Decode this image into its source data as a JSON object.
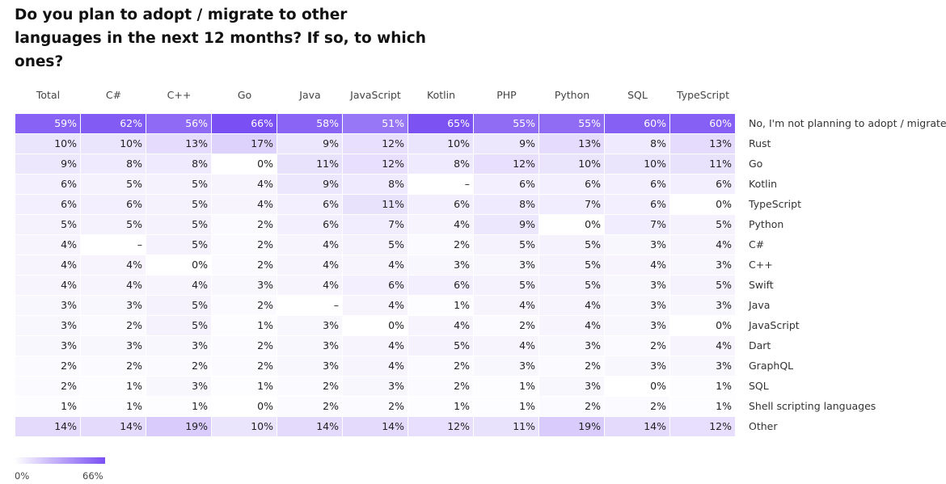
{
  "title": "Do you plan to adopt / migrate to other languages in the next 12 months? If so, to which ones?",
  "chart_data": {
    "type": "heatmap",
    "title": "Do you plan to adopt / migrate to other languages in the next 12 months? If so, to which ones?",
    "columns": [
      "Total",
      "C#",
      "C++",
      "Go",
      "Java",
      "JavaScript",
      "Kotlin",
      "PHP",
      "Python",
      "SQL",
      "TypeScript"
    ],
    "rows": [
      {
        "label": "No, I'm not planning to adopt / migrate",
        "values": [
          "59%",
          "62%",
          "56%",
          "66%",
          "58%",
          "51%",
          "65%",
          "55%",
          "55%",
          "60%",
          "60%"
        ]
      },
      {
        "label": "Rust",
        "values": [
          "10%",
          "10%",
          "13%",
          "17%",
          "9%",
          "12%",
          "10%",
          "9%",
          "13%",
          "8%",
          "13%"
        ]
      },
      {
        "label": "Go",
        "values": [
          "9%",
          "8%",
          "8%",
          "0%",
          "11%",
          "12%",
          "8%",
          "12%",
          "10%",
          "10%",
          "11%"
        ]
      },
      {
        "label": "Kotlin",
        "values": [
          "6%",
          "5%",
          "5%",
          "4%",
          "9%",
          "8%",
          "–",
          "6%",
          "6%",
          "6%",
          "6%"
        ]
      },
      {
        "label": "TypeScript",
        "values": [
          "6%",
          "6%",
          "5%",
          "4%",
          "6%",
          "11%",
          "6%",
          "8%",
          "7%",
          "6%",
          "0%"
        ]
      },
      {
        "label": "Python",
        "values": [
          "5%",
          "5%",
          "5%",
          "2%",
          "6%",
          "7%",
          "4%",
          "9%",
          "0%",
          "7%",
          "5%"
        ]
      },
      {
        "label": "C#",
        "values": [
          "4%",
          "–",
          "5%",
          "2%",
          "4%",
          "5%",
          "2%",
          "5%",
          "5%",
          "3%",
          "4%"
        ]
      },
      {
        "label": "C++",
        "values": [
          "4%",
          "4%",
          "0%",
          "2%",
          "4%",
          "4%",
          "3%",
          "3%",
          "5%",
          "4%",
          "3%"
        ]
      },
      {
        "label": "Swift",
        "values": [
          "4%",
          "4%",
          "4%",
          "3%",
          "4%",
          "6%",
          "6%",
          "5%",
          "5%",
          "3%",
          "5%"
        ]
      },
      {
        "label": "Java",
        "values": [
          "3%",
          "3%",
          "5%",
          "2%",
          "–",
          "4%",
          "1%",
          "4%",
          "4%",
          "3%",
          "3%"
        ]
      },
      {
        "label": "JavaScript",
        "values": [
          "3%",
          "2%",
          "5%",
          "1%",
          "3%",
          "0%",
          "4%",
          "2%",
          "4%",
          "3%",
          "0%"
        ]
      },
      {
        "label": "Dart",
        "values": [
          "3%",
          "3%",
          "3%",
          "2%",
          "3%",
          "4%",
          "5%",
          "4%",
          "3%",
          "2%",
          "4%"
        ]
      },
      {
        "label": "GraphQL",
        "values": [
          "2%",
          "2%",
          "2%",
          "2%",
          "3%",
          "4%",
          "2%",
          "3%",
          "2%",
          "3%",
          "3%"
        ]
      },
      {
        "label": "SQL",
        "values": [
          "2%",
          "1%",
          "3%",
          "1%",
          "2%",
          "3%",
          "2%",
          "1%",
          "3%",
          "0%",
          "1%"
        ]
      },
      {
        "label": "Shell scripting languages",
        "values": [
          "1%",
          "1%",
          "1%",
          "0%",
          "2%",
          "2%",
          "1%",
          "1%",
          "2%",
          "2%",
          "1%"
        ]
      },
      {
        "label": "Other",
        "values": [
          "14%",
          "14%",
          "19%",
          "10%",
          "14%",
          "14%",
          "12%",
          "11%",
          "19%",
          "14%",
          "12%"
        ]
      }
    ],
    "color_scale": {
      "min": 0,
      "max": 66,
      "min_label": "0%",
      "max_label": "66%",
      "min_color": "#ffffff",
      "max_color": "#7a4ff3"
    },
    "legend_placement": "bottom-left"
  }
}
